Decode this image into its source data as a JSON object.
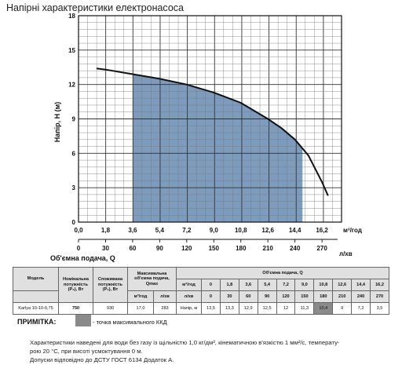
{
  "title": "Напірні характеристики електронасоса",
  "chart_data": {
    "type": "line",
    "title": "Напірні характеристики електронасоса",
    "ylabel": "Напір, H (м)",
    "xlabel": "Об'ємна подача, Q",
    "x_unit_primary": "м³/год",
    "x_unit_secondary": "л/хв",
    "xlim": [
      0,
      17.5
    ],
    "ylim": [
      0,
      18
    ],
    "y_ticks": [
      "18",
      "15",
      "12",
      "9",
      "6",
      "3",
      "0"
    ],
    "x_ticks_m3": [
      "0,0",
      "1,8",
      "3,6",
      "5,4",
      "7,2",
      "9,0",
      "10,8",
      "12,6",
      "14,4",
      "16,2"
    ],
    "x_ticks_lmin": [
      "0",
      "30",
      "60",
      "90",
      "120",
      "150",
      "180",
      "210",
      "240",
      "270"
    ],
    "grid": true,
    "series": [
      {
        "x": [
          1.2,
          1.8,
          3.6,
          5.4,
          7.2,
          9.0,
          10.8,
          12.6,
          13.5,
          14.4,
          15.3,
          16.2,
          16.6
        ],
        "y": [
          13.4,
          13.3,
          12.9,
          12.5,
          12.0,
          11.3,
          10.4,
          9.0,
          8.2,
          7.2,
          5.8,
          3.5,
          2.3
        ]
      }
    ],
    "highlight_region": {
      "x_start": 3.6,
      "x_end": 14.9,
      "color": "#7d9bbd"
    },
    "line_color": "#111111"
  },
  "table": {
    "header": {
      "model": "Модель",
      "nominal": "Номінальна потужність (P₂), Вт",
      "consumed": "Споживана потужність (P₁), Вт",
      "maxflow": "Максимальна об'ємна подача, Qmax",
      "flow": "Об'ємна подача, Q",
      "unit_m3": "м³/год",
      "unit_lmin": "л/хв"
    },
    "q_m3": [
      "0",
      "1,8",
      "3,6",
      "5,4",
      "7,2",
      "9,0",
      "10,8",
      "12,6",
      "14,4",
      "16,2"
    ],
    "q_lmin": [
      "0",
      "30",
      "60",
      "90",
      "120",
      "150",
      "180",
      "210",
      "240",
      "270"
    ],
    "row": {
      "model": "Karlya 10-10-0,75",
      "nominal": "750",
      "consumed": "930",
      "qmax_m3": "17,0",
      "qmax_lmin": "283",
      "head_label": "Напір, м",
      "head": [
        "13,5",
        "13,3",
        "12,9",
        "12,5",
        "12",
        "11,3",
        "10,4",
        "9",
        "7,2",
        "3,5"
      ]
    }
  },
  "note": {
    "label": "ПРИМІТКА:",
    "text": "- точка максимального ККД",
    "swatch_color": "#8a8a8a"
  },
  "footer": {
    "line1": "Характеристики наведені для води без газу із щільністю 1,0 кг/дм³, кінематичною в'язкістю 1 мм²/с, температу-",
    "line2": "рою 20 °С, при висоті усмоктування 0 м.",
    "line3": "Допуски відповідно до ДСТУ ГОСТ 6134 Додаток А."
  }
}
